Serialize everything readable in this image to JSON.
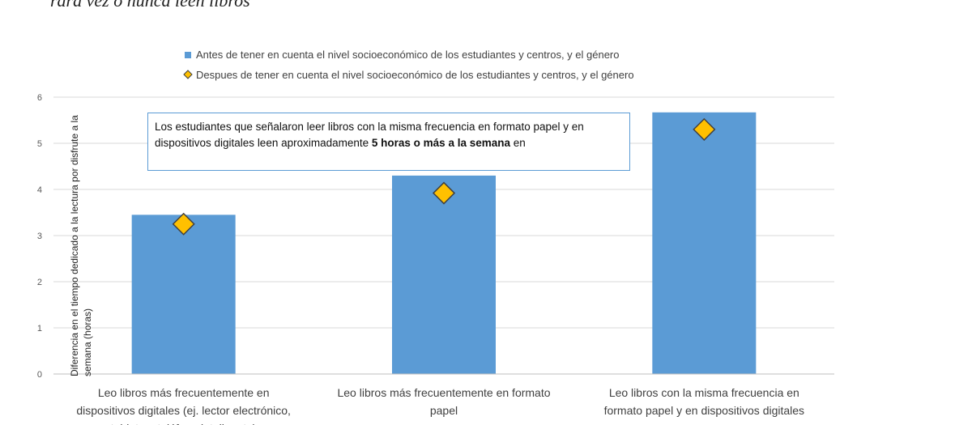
{
  "page_title": "rara vez o nunca leen libros",
  "note": {
    "text_before": "Los estudiantes que señalaron leer libros con la misma frecuencia en formato papel y en dispositivos digitales leen aproximadamente ",
    "bold": "5 horas o más a la semana",
    "text_after": " en"
  },
  "colors": {
    "bar": "#5b9bd5",
    "marker": "#ffc000",
    "marker_stroke": "#404040",
    "grid": "#d9d9d9",
    "note_border": "#5b9bd5"
  },
  "chart_data": {
    "type": "bar",
    "categories": [
      [
        "Leo libros más frecuentemente en",
        "dispositivos digitales (ej. lector electrónico,",
        "tableta o teléfono inteligente)"
      ],
      [
        "Leo libros más frecuentemente en formato",
        "papel"
      ],
      [
        "Leo libros con la misma frecuencia en",
        "formato papel y en dispositivos digitales"
      ]
    ],
    "series": [
      {
        "name": "Antes de tener en cuenta el nivel socioeconómico de los estudiantes y centros, y el género",
        "kind": "bar",
        "values": [
          3.45,
          4.3,
          5.67
        ]
      },
      {
        "name": "Despues de tener en cuenta el nivel socioeconómico de los estudiantes y centros, y el género",
        "kind": "marker",
        "values": [
          3.25,
          3.92,
          5.3
        ]
      }
    ],
    "ylabel": [
      "Diferencia en el tiempo dedicado a la lectura por disfrute a la",
      "semana (horas)"
    ],
    "ylim": [
      0,
      6
    ],
    "yticks": [
      "0",
      "1",
      "2",
      "3",
      "4",
      "5",
      "6"
    ],
    "grid": true,
    "legend_position": "top"
  }
}
